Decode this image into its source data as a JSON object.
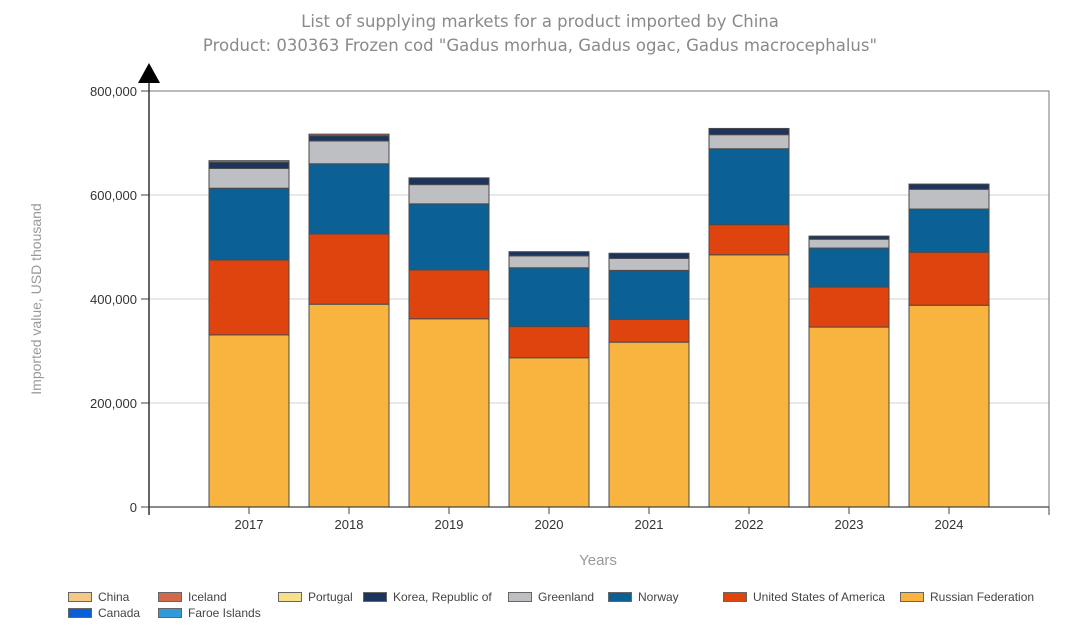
{
  "chart_data": {
    "type": "bar",
    "stacked": true,
    "title": "List of supplying markets for a product imported by China",
    "subtitle": "Product: 030363 Frozen cod \"Gadus morhua, Gadus ogac, Gadus macrocephalus\"",
    "xlabel": "Years",
    "ylabel": "Imported value, USD thousand",
    "ylim": [
      0,
      800000
    ],
    "yticks": [
      0,
      200000,
      400000,
      600000,
      800000
    ],
    "ytick_labels": [
      "0",
      "200,000",
      "400,000",
      "600,000",
      "800,000"
    ],
    "grid": true,
    "legend_position": "bottom",
    "categories": [
      "2017",
      "2018",
      "2019",
      "2020",
      "2021",
      "2022",
      "2023",
      "2024"
    ],
    "series": [
      {
        "name": "Russian Federation",
        "color": "#F9B43F",
        "values": [
          331000,
          390000,
          362000,
          287000,
          317000,
          485000,
          346000,
          388000
        ]
      },
      {
        "name": "United States of America",
        "color": "#E0440E",
        "values": [
          144000,
          135000,
          94000,
          60000,
          44000,
          58000,
          77000,
          102000
        ]
      },
      {
        "name": "Norway",
        "color": "#0B6196",
        "values": [
          138000,
          135000,
          127000,
          113000,
          94000,
          146000,
          75000,
          83000
        ]
      },
      {
        "name": "Greenland",
        "color": "#BDBFC3",
        "values": [
          38000,
          44000,
          37000,
          23000,
          23000,
          27000,
          17000,
          38000
        ]
      },
      {
        "name": "Korea, Republic of",
        "color": "#1C355E",
        "values": [
          12000,
          10000,
          13000,
          8000,
          10000,
          12000,
          6000,
          10000
        ]
      },
      {
        "name": "Faroe Islands",
        "color": "#2E9BD8",
        "values": [
          0,
          0,
          0,
          0,
          0,
          0,
          0,
          0
        ]
      },
      {
        "name": "Canada",
        "color": "#0B5ED7",
        "values": [
          0,
          0,
          0,
          0,
          0,
          0,
          0,
          0
        ]
      },
      {
        "name": "Portugal",
        "color": "#F8E08A",
        "values": [
          0,
          0,
          0,
          0,
          0,
          0,
          0,
          0
        ]
      },
      {
        "name": "Iceland",
        "color": "#D2694A",
        "values": [
          3000,
          3000,
          0,
          0,
          0,
          0,
          0,
          0
        ]
      },
      {
        "name": "China",
        "color": "#F4C987",
        "values": [
          0,
          0,
          0,
          0,
          0,
          0,
          0,
          0
        ]
      }
    ],
    "legend_order": [
      "China",
      "Iceland",
      "Portugal",
      "Korea, Republic of",
      "Greenland",
      "Norway",
      "United States of America",
      "Russian Federation",
      "Canada",
      "Faroe Islands"
    ]
  }
}
